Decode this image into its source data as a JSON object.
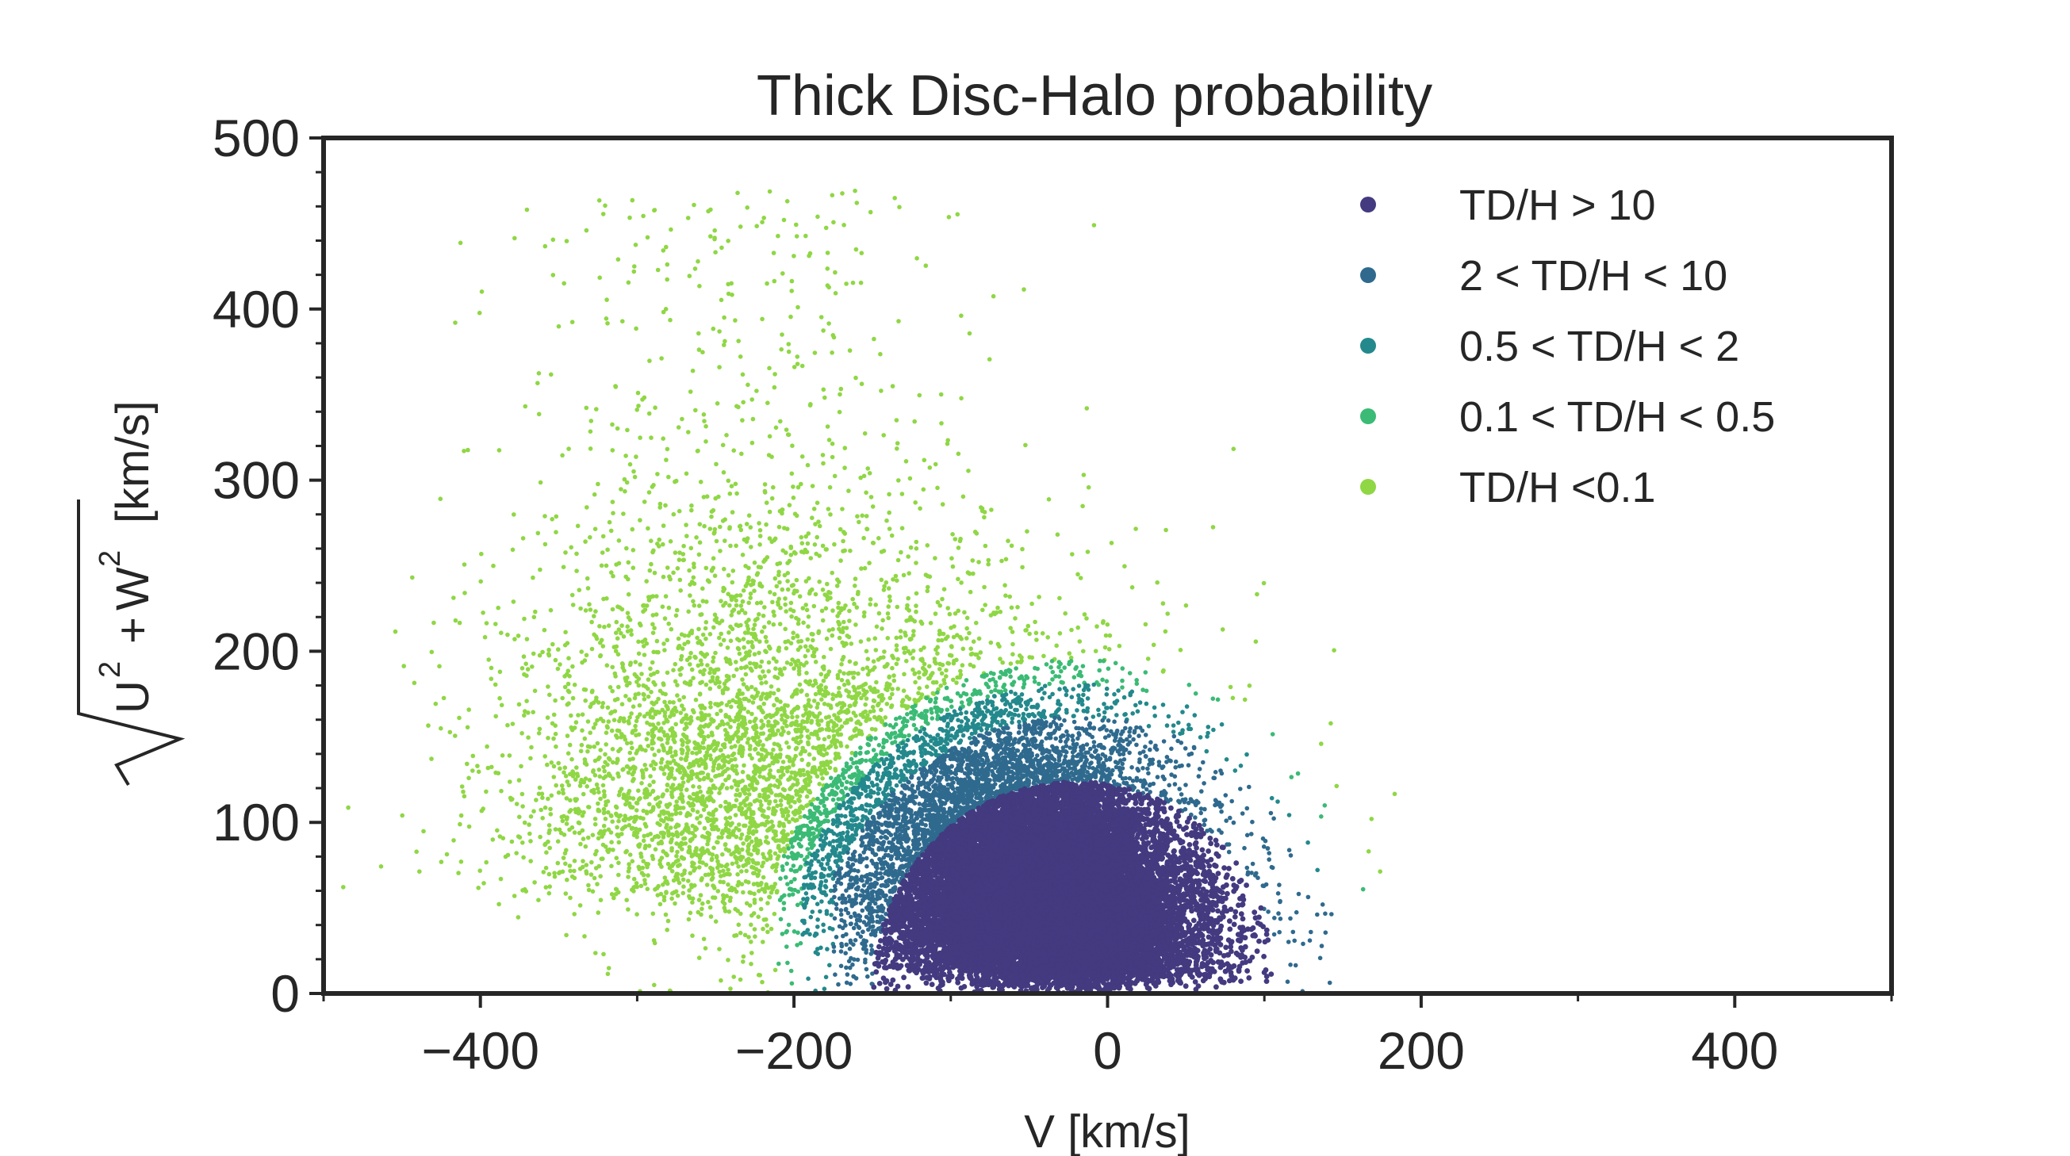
{
  "chart_data": {
    "type": "scatter",
    "title": "Thick Disc-Halo probability",
    "xlabel": "V [km/s]",
    "ylabel": {
      "radicand_u": "U",
      "radicand_w": "W",
      "exponent": "2",
      "plus": "+",
      "units": "[km/s]"
    },
    "xlim": [
      -500,
      500
    ],
    "ylim": [
      0,
      500
    ],
    "xticks": [
      -400,
      -200,
      0,
      200,
      400
    ],
    "xtick_labels": [
      "−400",
      "−200",
      "0",
      "200",
      "400"
    ],
    "yticks": [
      0,
      100,
      200,
      300,
      400,
      500
    ],
    "ytick_labels": [
      "0",
      "100",
      "200",
      "300",
      "400",
      "500"
    ],
    "legend_position": "top-right",
    "series": [
      {
        "name": "TD/H > 10",
        "color": "#433A80",
        "approx_center": [
          -30,
          60
        ],
        "approx_radius_kms": 130,
        "approx_count": 14000
      },
      {
        "name": "2 < TD/H < 10",
        "color": "#2F6A8E",
        "approx_center": [
          -80,
          100
        ],
        "approx_radius_kms": 170,
        "approx_count": 3000
      },
      {
        "name": "0.5 < TD/H < 2",
        "color": "#23898C",
        "approx_center": [
          -120,
          110
        ],
        "approx_radius_kms": 180,
        "approx_count": 1500
      },
      {
        "name": "0.1 < TD/H < 0.5",
        "color": "#3BBB75",
        "approx_center": [
          -150,
          110
        ],
        "approx_radius_kms": 180,
        "approx_count": 1000
      },
      {
        "name": "TD/H <0.1",
        "color": "#8FD744",
        "approx_center": [
          -240,
          170
        ],
        "approx_radius_kms": 230,
        "approx_count": 4500
      }
    ]
  }
}
